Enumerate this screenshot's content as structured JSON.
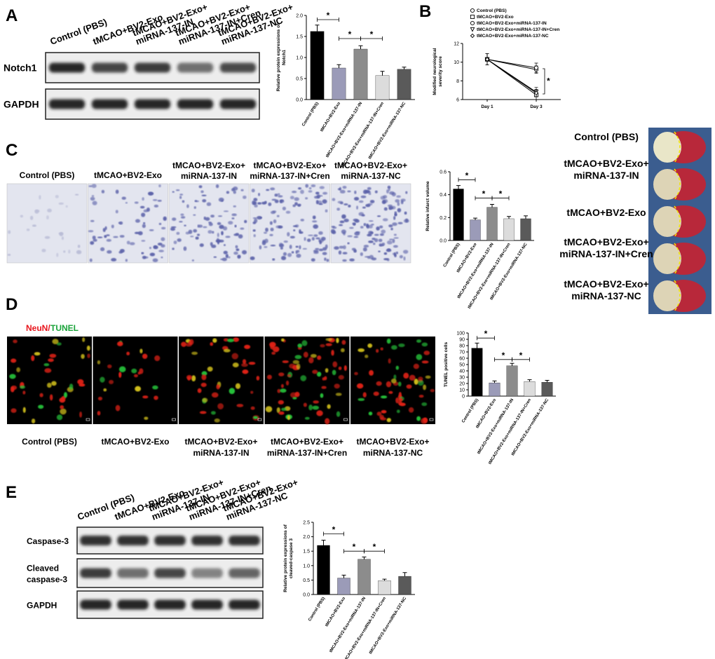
{
  "panel_labels": [
    "A",
    "B",
    "C",
    "D",
    "E"
  ],
  "blot_a": {
    "lanes": [
      [
        "Control (PBS)"
      ],
      [
        "tMCAO+BV2-Exo"
      ],
      [
        "tMCAO+BV2-Exo+",
        "miRNA-137-IN"
      ],
      [
        "tMCAO+BV2-Exo+",
        "miRNA-137-IN+Cren"
      ],
      [
        "tMCAO+BV2-Exo+",
        "miRNA-137-NC"
      ]
    ],
    "rows": [
      [
        "Notch1"
      ],
      [
        "GAPDH"
      ]
    ]
  },
  "histology_c": {
    "labels": [
      [
        "Control (PBS)"
      ],
      [
        "tMCAO+BV2-Exo"
      ],
      [
        "tMCAO+BV2-Exo+",
        "miRNA-137-IN"
      ],
      [
        "tMCAO+BV2-Exo+",
        "miRNA-137-IN+Cren"
      ],
      [
        "tMCAO+BV2-Exo+",
        "miRNA-137-NC"
      ]
    ]
  },
  "ttc_c": {
    "labels": [
      [
        "Control (PBS)"
      ],
      [
        "tMCAO+BV2-Exo+",
        "miRNA-137-IN"
      ],
      [
        "tMCAO+BV2-Exo"
      ],
      [
        "tMCAO+BV2-Exo+",
        "miRNA-137-IN+Cren"
      ],
      [
        "tMCAO+BV2-Exo+",
        "miRNA-137-NC"
      ]
    ]
  },
  "fluorescence_d": {
    "stain": [
      "NeuN/",
      "TUNEL"
    ],
    "labels": [
      [
        "Control (PBS)"
      ],
      [
        "tMCAO+BV2-Exo"
      ],
      [
        "tMCAO+BV2-Exo+",
        "miRNA-137-IN"
      ],
      [
        "tMCAO+BV2-Exo+",
        "miRNA-137-IN+Cren"
      ],
      [
        "tMCAO+BV2-Exo+",
        "miRNA-137-NC"
      ]
    ]
  },
  "blot_e": {
    "lanes": [
      [
        "Control (PBS)"
      ],
      [
        "tMCAO+BV2-Exo"
      ],
      [
        "tMCAO+BV2-Exo+",
        "miRNA-137-IN"
      ],
      [
        "tMCAO+BV2-Exo+",
        "miRNA-137-IN+Cren"
      ],
      [
        "tMCAO+BV2-Exo+",
        "miRNA-137-NC"
      ]
    ],
    "rows": [
      [
        "Caspase-3"
      ],
      [
        "Cleaved",
        "caspase-3"
      ],
      [
        "GAPDH"
      ]
    ]
  },
  "chart_data": [
    {
      "type": "bar",
      "ylabel": [
        "Relative protein expressions of",
        "Notch1"
      ],
      "categories": [
        "Control (PBS)",
        "tMCAO+BV2-Exo",
        "tMCAO+BV2-Exo+miRNA-137-IN",
        "tMCAO+BV2-Exo+miRNA-137-IN+Cren",
        "tMCAO+BV2-Exo+miRNA-137-NC"
      ],
      "values": [
        1.62,
        0.75,
        1.2,
        0.57,
        0.72
      ],
      "errors": [
        0.15,
        0.08,
        0.08,
        0.1,
        0.05
      ],
      "colors": [
        "#000000",
        "#9b9bb8",
        "#8c8c8c",
        "#dcdcdc",
        "#5a5a5a"
      ],
      "ylim": [
        0,
        2
      ],
      "yticks": [
        {
          "value": 0,
          "label": "0.0"
        },
        0.5,
        {
          "value": 1,
          "label": "1.0"
        },
        1.5,
        {
          "value": 2,
          "label": "2.0"
        }
      ],
      "annotations": [
        "*",
        "*",
        "*"
      ]
    },
    {
      "type": "line",
      "ylabel": [
        "Modified neurological",
        "severity score"
      ],
      "categories": [
        "Day 1",
        "Day 3"
      ],
      "series": [
        {
          "name": "Control (PBS)",
          "color": "#000000",
          "marker": "circle",
          "values": [
            10.3,
            9.2
          ],
          "errors": [
            0.6,
            0.4
          ]
        },
        {
          "name": "tMCAO+BV2-Exo",
          "color": "#000000",
          "marker": "square",
          "values": [
            10.3,
            6.5
          ],
          "errors": [
            0.6,
            0.5
          ]
        },
        {
          "name": "tMCAO+BV2-Exo+miRNA-137-IN",
          "color": "#000000",
          "marker": "circle",
          "values": [
            10.3,
            9.4
          ],
          "errors": [
            0.6,
            0.5
          ]
        },
        {
          "name": "tMCAO+BV2-Exo+miRNA-137-IN+Cren",
          "color": "#000000",
          "marker": "triangle",
          "values": [
            10.3,
            6.8
          ],
          "errors": [
            0.6,
            0.5
          ]
        },
        {
          "name": "tMCAO+BV2-Exo+miRNA-137-NC",
          "color": "#000000",
          "marker": "diamond",
          "values": [
            10.3,
            6.7
          ],
          "errors": [
            0.6,
            0.4
          ]
        }
      ],
      "ylim": [
        6,
        12
      ],
      "yticks": [
        6,
        8,
        10,
        12
      ],
      "annotations": [
        "*"
      ]
    },
    {
      "type": "bar",
      "ylabel": [
        "Relative infarct volume"
      ],
      "categories": [
        "Control (PBS)",
        "tMCAO+BV2-Exo",
        "tMCAO+BV2-Exo+miRNA-137-IN",
        "tMCAO+BV2-Exo+miRNA-137-IN+Cren",
        "tMCAO+BV2-Exo+miRNA-137-NC"
      ],
      "values": [
        0.45,
        0.18,
        0.29,
        0.19,
        0.19
      ],
      "errors": [
        0.03,
        0.015,
        0.025,
        0.02,
        0.025
      ],
      "colors": [
        "#000000",
        "#9b9bb8",
        "#8c8c8c",
        "#dcdcdc",
        "#5a5a5a"
      ],
      "ylim": [
        0,
        0.6
      ],
      "yticks": [
        {
          "value": 0,
          "label": "0.0"
        },
        0.2,
        0.4,
        0.6
      ],
      "annotations": [
        "*",
        "*",
        "*"
      ]
    },
    {
      "type": "bar",
      "ylabel": [
        "TUNEL positive cells"
      ],
      "categories": [
        "Control (PBS)",
        "tMCAO+BV2-Exo",
        "tMCAO+BV2-Exo+miRNA-137-IN",
        "tMCAO+BV2-Exo+miRNA-137-IN+Cren",
        "tMCAO+BV2-Exo+miRNA-137-NC"
      ],
      "values": [
        76,
        21,
        48,
        23,
        22
      ],
      "errors": [
        8,
        3,
        4,
        3,
        3
      ],
      "colors": [
        "#000000",
        "#9b9bb8",
        "#8c8c8c",
        "#dcdcdc",
        "#5a5a5a"
      ],
      "ylim": [
        0,
        100
      ],
      "yticks": [
        0,
        10,
        20,
        30,
        40,
        50,
        60,
        70,
        80,
        90,
        100
      ],
      "annotations": [
        "*",
        "*",
        "*"
      ]
    },
    {
      "type": "bar",
      "ylabel": [
        "Relative protein expressions of",
        "cleaved-caspase 3"
      ],
      "categories": [
        "Control (PBS)",
        "tMCAO+BV2-Exo",
        "tMCAO+BV2-Exo+miRNA-137-IN",
        "tMCAO+BV2-Exo+miRNA-137-IN+Cren",
        "tMCAO+BV2-Exo+miRNA-137-NC"
      ],
      "values": [
        1.7,
        0.57,
        1.22,
        0.48,
        0.63
      ],
      "errors": [
        0.18,
        0.1,
        0.08,
        0.05,
        0.13
      ],
      "colors": [
        "#000000",
        "#9b9bb8",
        "#8c8c8c",
        "#dcdcdc",
        "#5a5a5a"
      ],
      "ylim": [
        0,
        2.5
      ],
      "yticks": [
        {
          "value": 0,
          "label": "0.0"
        },
        0.5,
        {
          "value": 1,
          "label": "1.0"
        },
        1.5,
        {
          "value": 2,
          "label": "2.0"
        },
        2.5
      ],
      "annotations": [
        "*",
        "*",
        "*"
      ]
    }
  ]
}
